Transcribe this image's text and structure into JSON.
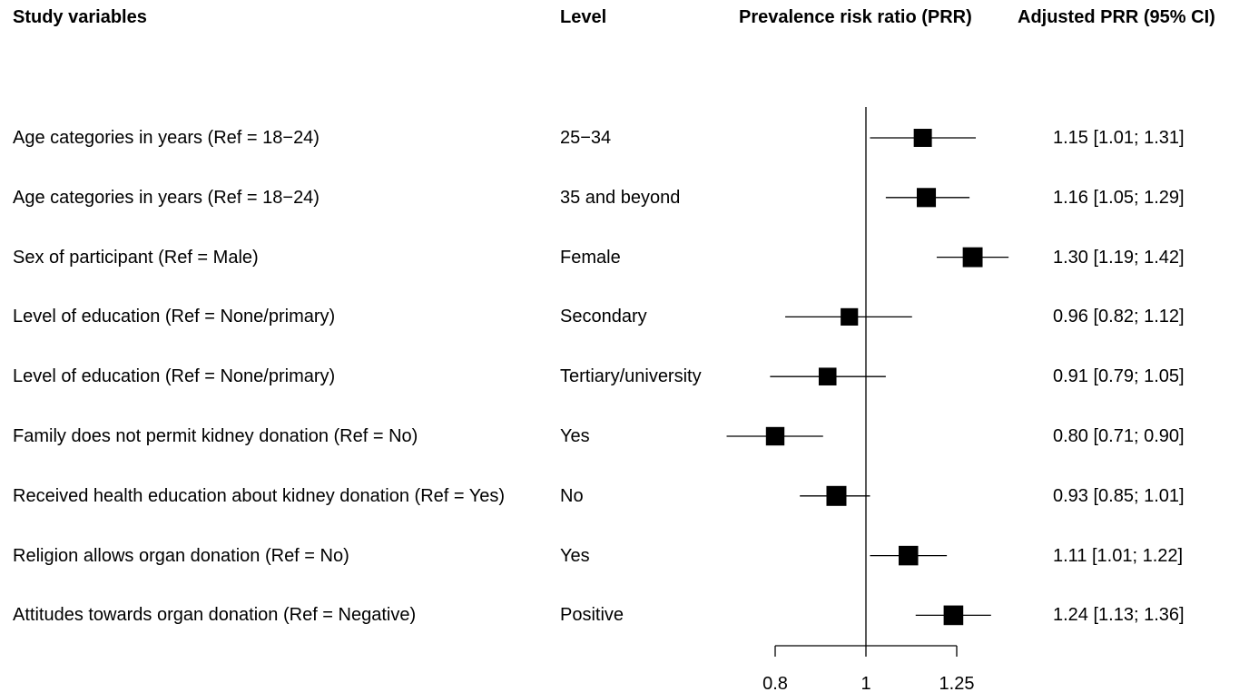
{
  "headers": {
    "variable": "Study variables",
    "level": "Level",
    "plot": "Prevalence risk ratio (PRR)",
    "estimate": "Adjusted PRR (95% CI)"
  },
  "chart_data": {
    "type": "forest",
    "scale": "log",
    "reference_line": 1,
    "xticks": [
      0.8,
      1,
      1.25
    ],
    "xtick_labels": [
      "0.8",
      "1",
      "1.25"
    ],
    "rows": [
      {
        "variable": "Age categories in years (Ref = 18−24)",
        "level": "25−34",
        "prr": 1.15,
        "lo": 1.01,
        "hi": 1.31,
        "label": "1.15 [1.01; 1.31]"
      },
      {
        "variable": "Age categories in years (Ref = 18−24)",
        "level": "35 and beyond",
        "prr": 1.16,
        "lo": 1.05,
        "hi": 1.29,
        "label": "1.16 [1.05; 1.29]"
      },
      {
        "variable": "Sex of participant (Ref = Male)",
        "level": "Female",
        "prr": 1.3,
        "lo": 1.19,
        "hi": 1.42,
        "label": "1.30 [1.19; 1.42]"
      },
      {
        "variable": "Level of education (Ref = None/primary)",
        "level": "Secondary",
        "prr": 0.96,
        "lo": 0.82,
        "hi": 1.12,
        "label": "0.96 [0.82; 1.12]"
      },
      {
        "variable": "Level of education (Ref = None/primary)",
        "level": "Tertiary/university",
        "prr": 0.91,
        "lo": 0.79,
        "hi": 1.05,
        "label": "0.91 [0.79; 1.05]"
      },
      {
        "variable": "Family does not permit kidney donation (Ref = No)",
        "level": "Yes",
        "prr": 0.8,
        "lo": 0.71,
        "hi": 0.9,
        "label": "0.80 [0.71; 0.90]"
      },
      {
        "variable": "Received health education about kidney donation (Ref = Yes)",
        "level": "No",
        "prr": 0.93,
        "lo": 0.85,
        "hi": 1.01,
        "label": "0.93 [0.85; 1.01]"
      },
      {
        "variable": "Religion allows organ donation (Ref = No)",
        "level": "Yes",
        "prr": 1.11,
        "lo": 1.01,
        "hi": 1.22,
        "label": "1.11 [1.01; 1.22]"
      },
      {
        "variable": "Attitudes towards organ donation (Ref = Negative)",
        "level": "Positive",
        "prr": 1.24,
        "lo": 1.13,
        "hi": 1.36,
        "label": "1.24 [1.13; 1.36]"
      }
    ]
  }
}
